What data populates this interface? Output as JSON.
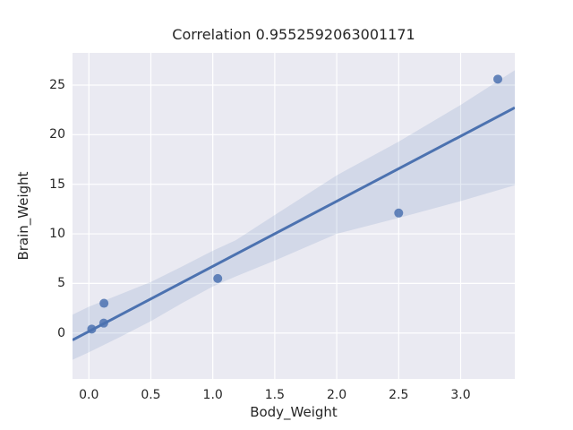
{
  "chart_data": {
    "type": "scatter",
    "title": "Correlation 0.9552592063001171",
    "xlabel": "Body_Weight",
    "ylabel": "Brain_Weight",
    "xlim": [
      -0.132,
      3.437
    ],
    "ylim": [
      -4.63,
      28.25
    ],
    "xticks": [
      0.0,
      0.5,
      1.0,
      1.5,
      2.0,
      2.5,
      3.0
    ],
    "xtick_labels": [
      "0.0",
      "0.5",
      "1.0",
      "1.5",
      "2.0",
      "2.5",
      "3.0"
    ],
    "yticks": [
      0,
      5,
      10,
      15,
      20,
      25
    ],
    "ytick_labels": [
      "0",
      "5",
      "10",
      "15",
      "20",
      "25"
    ],
    "grid": true,
    "legend": false,
    "points": [
      [
        0.023,
        0.4
      ],
      [
        0.12,
        1.0
      ],
      [
        0.122,
        3.0
      ],
      [
        1.04,
        5.5
      ],
      [
        2.5,
        12.1
      ],
      [
        3.3,
        25.6
      ]
    ],
    "regression_line": {
      "slope": 6.564,
      "intercept": 0.16
    },
    "ci_band": {
      "x": [
        -0.132,
        0.0,
        0.25,
        0.5,
        0.75,
        1.0,
        1.184,
        1.5,
        2.0,
        2.5,
        3.0,
        3.437
      ],
      "upper": [
        1.85,
        2.65,
        3.9,
        5.15,
        6.7,
        8.3,
        9.35,
        11.9,
        15.9,
        19.3,
        23.0,
        26.5
      ],
      "lower": [
        -2.7,
        -1.95,
        -0.4,
        1.2,
        3.0,
        4.7,
        5.7,
        7.3,
        10.0,
        11.6,
        13.3,
        14.9
      ]
    },
    "colors": {
      "marker": "#4C72B0",
      "line": "#4C72B0",
      "band": "#4C72B0",
      "band_opacity": 0.15,
      "axes_bg": "#EAEAF2",
      "grid": "#FFFFFF",
      "text": "#262626",
      "figure_bg": "#FFFFFF"
    }
  }
}
